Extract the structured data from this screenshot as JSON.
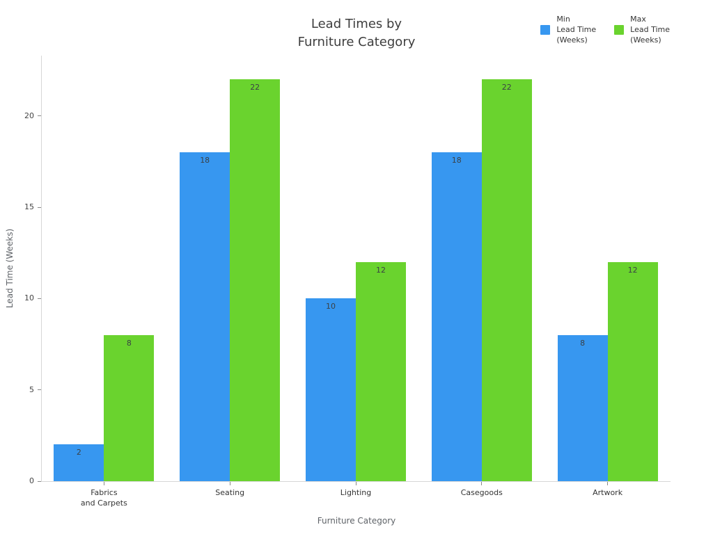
{
  "chart_data": {
    "type": "bar",
    "title": "Lead Times by\nFurniture Category",
    "xlabel": "Furniture Category",
    "ylabel": "Lead Time (Weeks)",
    "categories": [
      "Fabrics\nand Carpets",
      "Seating",
      "Lighting",
      "Casegoods",
      "Artwork"
    ],
    "series": [
      {
        "name": "Min\nLead Time\n(Weeks)",
        "color": "#3797f0",
        "values": [
          2,
          18,
          10,
          18,
          8
        ]
      },
      {
        "name": "Max\nLead Time\n(Weeks)",
        "color": "#6ad32e",
        "values": [
          8,
          22,
          12,
          22,
          12
        ]
      }
    ],
    "bar_value_labels": [
      [
        2,
        18,
        10,
        18,
        8
      ],
      [
        8,
        22,
        12,
        22,
        12
      ]
    ],
    "yticks": [
      0,
      5,
      10,
      15,
      20
    ],
    "ylim": [
      0,
      23.3
    ],
    "grid": false,
    "legend_position": "top-right",
    "colors": {
      "min_bar": "#3797f0",
      "max_bar": "#6ad32e",
      "axis_line": "#d6d6d6",
      "tick_mark": "#888888",
      "title_text": "#3d3d3d",
      "axis_title_text": "#5f6368",
      "tick_label_text": "#444444"
    }
  }
}
